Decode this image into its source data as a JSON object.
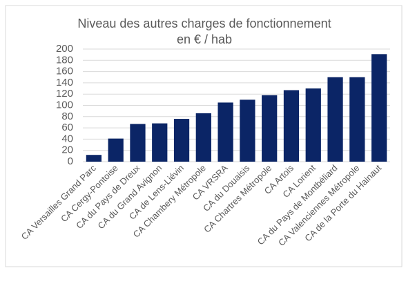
{
  "chart_data": {
    "type": "bar",
    "title": "Niveau des autres charges de fonctionnement",
    "subtitle": "en € / hab",
    "categories": [
      "CA Versailles Grand Parc",
      "CA Cergy-Pontoise",
      "CA du Pays de Dreux",
      "CA du Grand Avignon",
      "CA de Lens-Liévin",
      "CA Chambery Métropole",
      "CA VRSRA",
      "CA du Douaisis",
      "CA Chartres Métropole",
      "CA Artois",
      "CA Lorient",
      "CA du Pays de Montbéliard",
      "CA Valenciennes Métropole",
      "CA de la Porte du Hainaut"
    ],
    "values": [
      12,
      41,
      67,
      68,
      76,
      86,
      105,
      110,
      118,
      127,
      130,
      150,
      150,
      191
    ],
    "color": "#0b2566",
    "ylim": [
      0,
      200
    ],
    "yticks": [
      0,
      20,
      40,
      60,
      80,
      100,
      120,
      140,
      160,
      180,
      200
    ],
    "grid": true
  }
}
